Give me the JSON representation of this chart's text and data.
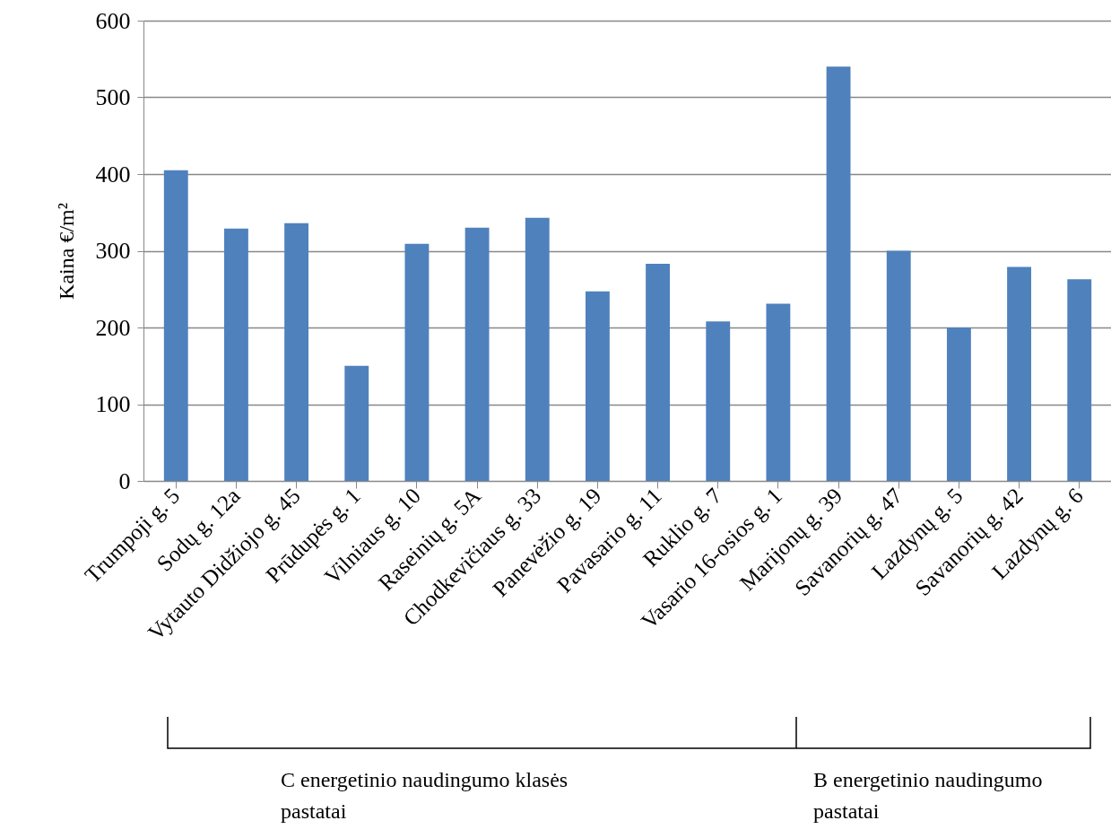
{
  "chart_data": {
    "type": "bar",
    "ylabel": "Kaina €/m²",
    "categories": [
      "Trumpoji g. 5",
      "Sodų g. 12a",
      "Vytauto Didžiojo g. 45",
      "Prūdupės g. 1",
      "Vilniaus g. 10",
      "Raseinių g. 5A",
      "Chodkevičiaus g. 33",
      "Panevėžio g. 19",
      "Pavasario g. 11",
      "Ruklio g. 7",
      "Vasario 16-osios g. 1",
      "Marijonų g. 39",
      "Savanorių g. 47",
      "Lazdynų g. 5",
      "Savanorių g. 42",
      "Lazdynų g. 6"
    ],
    "values": [
      405,
      329,
      336,
      150,
      309,
      330,
      343,
      247,
      283,
      208,
      231,
      540,
      300,
      200,
      279,
      263
    ],
    "color": "#4f81bd",
    "ylim": [
      0,
      600
    ],
    "yticks": [
      0,
      100,
      200,
      300,
      400,
      500,
      600
    ],
    "grid": "y",
    "annotations": [
      "C energetinio naudingumo klasės pastatai",
      "B energetinio naudingumo pastatai"
    ]
  }
}
